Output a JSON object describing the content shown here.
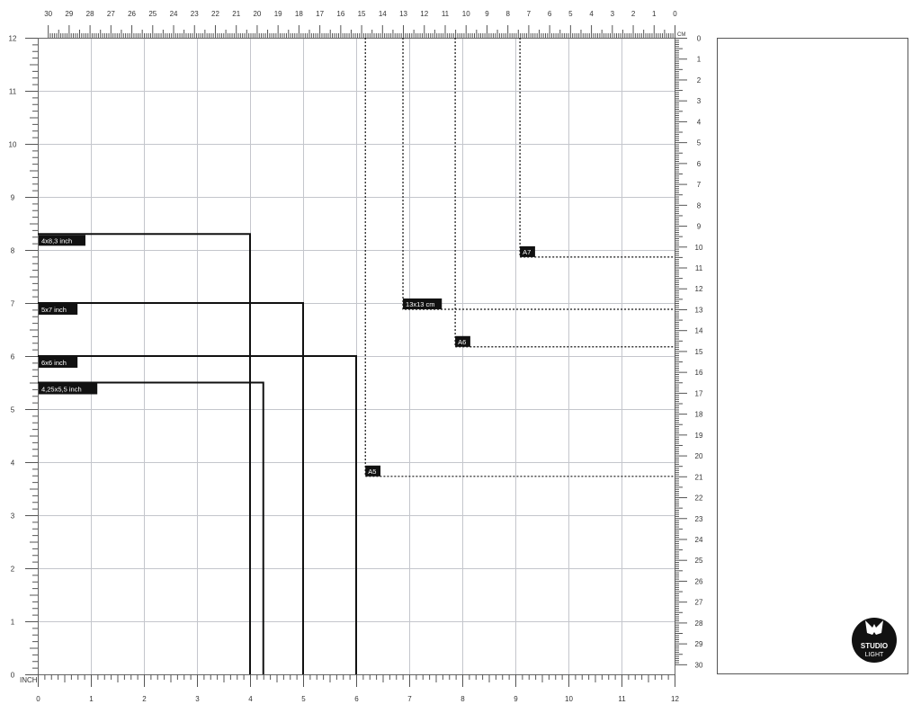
{
  "mat": {
    "width_inch": 12,
    "height_inch": 12,
    "width_cm": 30,
    "height_cm": 30,
    "inch_unit_label": "INCH",
    "cm_unit_label": "CM"
  },
  "inch_shapes": [
    {
      "label": "4x8,3 inch",
      "w": 4,
      "h": 8.3
    },
    {
      "label": "5x7 inch",
      "w": 5,
      "h": 7
    },
    {
      "label": "6x6 inch",
      "w": 6,
      "h": 6
    },
    {
      "label": "4,25x5,5 inch",
      "w": 4.25,
      "h": 5.5
    }
  ],
  "cm_shapes": [
    {
      "label": "A7",
      "w": 7.4,
      "h": 10.5
    },
    {
      "label": "13x13 cm",
      "w": 13,
      "h": 13
    },
    {
      "label": "A6",
      "w": 10.5,
      "h": 14.8
    },
    {
      "label": "A5",
      "w": 14.8,
      "h": 21
    }
  ],
  "logo": {
    "line1": "STUDIO",
    "line2": "LIGHT"
  },
  "colors": {
    "grid": "#c4c6cc",
    "ruler": "#555555",
    "label_bg": "#111111",
    "shape": "#111111"
  }
}
